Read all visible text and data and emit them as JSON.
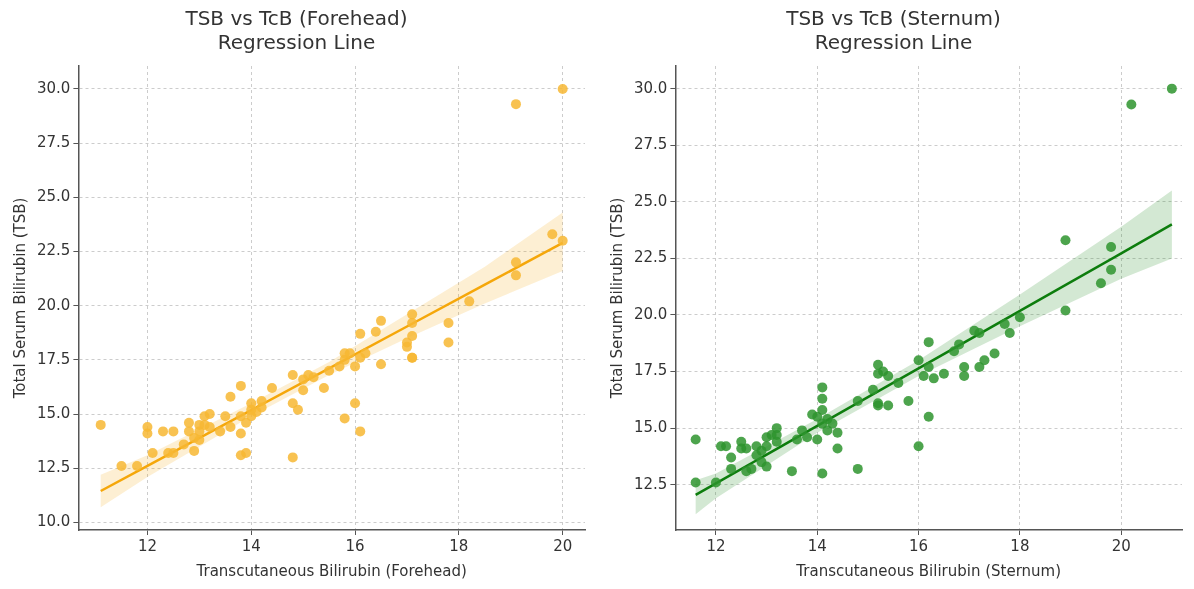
{
  "chart_data": [
    {
      "type": "scatter",
      "title": "TSB vs TcB (Forehead)\nRegression Line",
      "xlabel": "Transcutaneous Bilirubin (Forehead)",
      "ylabel": "Total Serum Bilirubin (TSB)",
      "grid": true,
      "xlim": [
        10.67,
        20.43
      ],
      "xticks": [
        12,
        14,
        16,
        18,
        20
      ],
      "ylim": [
        9.65,
        31.06
      ],
      "yticks": [
        {
          "value": 10,
          "label": "10.0"
        },
        {
          "value": 12.5,
          "label": "12.5"
        },
        {
          "value": 15,
          "label": "15.0"
        },
        {
          "value": 17.5,
          "label": "17.5"
        },
        {
          "value": 20,
          "label": "20.0"
        },
        {
          "value": 22.5,
          "label": "22.5"
        },
        {
          "value": 25,
          "label": "25.0"
        },
        {
          "value": 27.5,
          "label": "27.5"
        },
        {
          "value": 30,
          "label": "30.0"
        }
      ],
      "series": [
        {
          "marker": "circle",
          "color": "#f7b733",
          "x": [
            11.1,
            11.5,
            11.8,
            12,
            12,
            12.1,
            12.3,
            12.4,
            12.5,
            12.5,
            12.7,
            12.8,
            12.8,
            12.9,
            12.9,
            13,
            13,
            13,
            13.1,
            13.1,
            13.2,
            13.2,
            13.4,
            13.5,
            13.6,
            13.6,
            13.8,
            13.8,
            13.8,
            13.8,
            13.9,
            13.9,
            14,
            14,
            14,
            14.1,
            14.2,
            14.2,
            14.4,
            14.8,
            14.8,
            14.8,
            14.9,
            15,
            15,
            15.1,
            15.2,
            15.4,
            15.5,
            15.7,
            15.8,
            15.8,
            15.8,
            15.9,
            16,
            16,
            16.1,
            16.1,
            16.1,
            16.2,
            16.4,
            16.5,
            16.5,
            17,
            17,
            17.1,
            17.1,
            17.1,
            17.1,
            17.1,
            17.8,
            17.8,
            18.2,
            19.1,
            19.1,
            19.1,
            19.8,
            20,
            20
          ],
          "values": [
            14.5,
            12.6,
            12.6,
            14.4,
            14.1,
            13.2,
            14.2,
            13.2,
            13.2,
            14.2,
            13.6,
            14.2,
            14.6,
            13.9,
            13.3,
            14.5,
            14.2,
            13.8,
            14.9,
            14.5,
            14.4,
            15,
            14.2,
            14.9,
            15.8,
            14.4,
            16.3,
            14.9,
            14.1,
            13.1,
            13.2,
            14.6,
            15.5,
            15.2,
            14.9,
            15.1,
            15.3,
            15.6,
            16.2,
            13,
            16.8,
            15.5,
            15.2,
            16.6,
            16.1,
            16.8,
            16.7,
            16.2,
            17,
            17.2,
            14.8,
            17.5,
            17.8,
            17.8,
            15.5,
            17.2,
            14.2,
            17.6,
            18.7,
            17.8,
            18.8,
            19.3,
            17.3,
            18.3,
            18.1,
            19.6,
            19.2,
            18.6,
            17.6,
            17.6,
            19.2,
            18.3,
            20.2,
            22,
            21.4,
            29.3,
            23.3,
            23,
            30
          ]
        },
        {
          "type": "line",
          "marker": "none",
          "color": "#f5a70a",
          "x": [
            11.1,
            12,
            14,
            15.5,
            17,
            18.5,
            20
          ],
          "values": [
            11.45,
            12.61,
            15.18,
            17.11,
            19.04,
            20.97,
            22.9
          ],
          "lower": [
            10.7,
            12.1,
            14.9,
            16.8,
            18.5,
            20.1,
            21.6
          ],
          "upper": [
            12.2,
            13.1,
            15.5,
            17.4,
            19.6,
            21.8,
            24.3
          ]
        }
      ]
    },
    {
      "type": "scatter",
      "title": "TSB vs TcB (Sternum)\nRegression Line",
      "xlabel": "Transcutaneous Bilirubin (Sternum)",
      "ylabel": "Total Serum Bilirubin (TSB)",
      "grid": true,
      "xlim": [
        11.2,
        21.2
      ],
      "xticks": [
        12,
        14,
        16,
        18,
        20
      ],
      "ylim": [
        10.5,
        31
      ],
      "yticks": [
        {
          "value": 12.5,
          "label": "12.5"
        },
        {
          "value": 15,
          "label": "15.0"
        },
        {
          "value": 17.5,
          "label": "17.5"
        },
        {
          "value": 20,
          "label": "20.0"
        },
        {
          "value": 22.5,
          "label": "22.5"
        },
        {
          "value": 25,
          "label": "25.0"
        },
        {
          "value": 27.5,
          "label": "27.5"
        },
        {
          "value": 30,
          "label": "30.0"
        }
      ],
      "series": [
        {
          "marker": "circle",
          "color": "#2e942e",
          "x": [
            11.6,
            11.6,
            12,
            12.1,
            12.2,
            12.3,
            12.3,
            12.5,
            12.5,
            12.6,
            12.6,
            12.7,
            12.8,
            12.8,
            12.9,
            12.9,
            13,
            13,
            13,
            13.1,
            13.2,
            13.2,
            13.2,
            13.5,
            13.6,
            13.7,
            13.8,
            13.9,
            14,
            14,
            14.1,
            14.1,
            14.1,
            14.1,
            14.1,
            14.2,
            14.2,
            14.3,
            14.4,
            14.4,
            14.8,
            14.8,
            15.1,
            15.2,
            15.2,
            15.2,
            15.2,
            15.3,
            15.4,
            15.4,
            15.6,
            16,
            16,
            15.8,
            16.1,
            16.2,
            16.2,
            16.2,
            16.3,
            16.5,
            16.7,
            16.8,
            16.9,
            16.9,
            17.1,
            17.2,
            17.2,
            17.3,
            17.5,
            17.7,
            17.8,
            18,
            18.9,
            18.9,
            19.6,
            19.8,
            19.8,
            20.2,
            21
          ],
          "values": [
            14.5,
            12.6,
            12.6,
            14.2,
            14.2,
            13.7,
            13.2,
            14.4,
            14.1,
            14.1,
            13.1,
            13.2,
            14.2,
            13.8,
            14,
            13.5,
            14.2,
            13.3,
            14.6,
            14.7,
            15,
            14.7,
            14.4,
            13.1,
            14.5,
            14.9,
            14.6,
            15.6,
            14.5,
            15.5,
            16.8,
            16.3,
            15.8,
            15.2,
            13,
            15.4,
            14.9,
            15.2,
            14.8,
            14.1,
            13.2,
            16.2,
            16.7,
            17.8,
            17.4,
            16.1,
            16,
            17.5,
            17.3,
            16,
            17,
            18,
            14.2,
            16.2,
            17.3,
            18.8,
            15.5,
            17.7,
            17.2,
            17.4,
            18.4,
            18.7,
            17.7,
            17.3,
            19.3,
            19.2,
            17.7,
            18,
            18.3,
            19.6,
            19.2,
            19.9,
            23.3,
            20.2,
            21.4,
            23,
            22,
            29.3,
            30
          ]
        },
        {
          "type": "line",
          "marker": "none",
          "color": "#0d7d0d",
          "x": [
            11.6,
            12,
            14,
            16,
            18,
            20,
            21
          ],
          "values": [
            12.05,
            12.56,
            15.1,
            17.64,
            20.18,
            22.72,
            24
          ],
          "lower": [
            11.2,
            11.9,
            14.8,
            17.3,
            19.5,
            21.6,
            22.5
          ],
          "upper": [
            12.7,
            13,
            15.4,
            18,
            20.9,
            23.9,
            25.5
          ]
        }
      ]
    }
  ]
}
